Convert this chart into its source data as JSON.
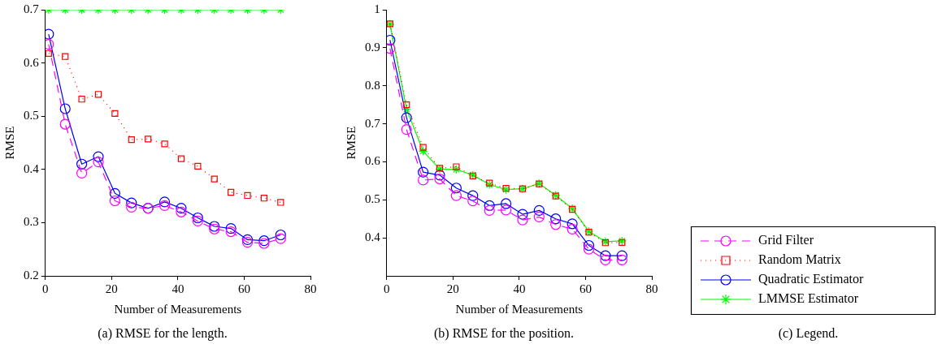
{
  "chart_data": [
    {
      "type": "line",
      "title": "(a) RMSE for the length.",
      "xlabel": "Number of Measurements",
      "ylabel": "RMSE",
      "x": [
        1,
        6,
        11,
        16,
        21,
        26,
        31,
        36,
        41,
        46,
        51,
        56,
        61,
        66,
        71
      ],
      "xlim": [
        0,
        80
      ],
      "xticks": [
        0,
        20,
        40,
        60,
        80
      ],
      "ylim": [
        0.2,
        0.7
      ],
      "yticks": [
        0.2,
        0.3,
        0.4,
        0.5,
        0.6,
        0.7
      ],
      "grid": false,
      "series": [
        {
          "color": "#ff00ff",
          "marker": "circle",
          "line_style": "dashed",
          "values": [
            0.635,
            0.485,
            0.393,
            0.414,
            0.341,
            0.329,
            0.327,
            0.332,
            0.32,
            0.303,
            0.288,
            0.283,
            0.263,
            0.261,
            0.27
          ]
        },
        {
          "color": "#ff0000",
          "marker": "square",
          "line_style": "dotted",
          "values": [
            0.618,
            0.612,
            0.532,
            0.541,
            0.505,
            0.456,
            0.457,
            0.448,
            0.42,
            0.406,
            0.382,
            0.357,
            0.351,
            0.346,
            0.338
          ]
        },
        {
          "color": "#0000ff",
          "marker": "circle",
          "line_style": "solid",
          "values": [
            0.654,
            0.514,
            0.41,
            0.424,
            0.355,
            0.337,
            0.327,
            0.339,
            0.327,
            0.309,
            0.293,
            0.289,
            0.268,
            0.266,
            0.277
          ]
        },
        {
          "color": "#00ff00",
          "marker": "cross",
          "line_style": "solid",
          "values": [
            0.7,
            0.7,
            0.7,
            0.7,
            0.7,
            0.7,
            0.7,
            0.7,
            0.7,
            0.7,
            0.7,
            0.7,
            0.7,
            0.7,
            0.7
          ]
        }
      ]
    },
    {
      "type": "line",
      "title": "(b) RMSE for the position.",
      "xlabel": "Number of Measurements",
      "ylabel": "RMSE",
      "x": [
        1,
        6,
        11,
        16,
        21,
        26,
        31,
        36,
        41,
        46,
        51,
        56,
        61,
        66,
        71
      ],
      "xlim": [
        0,
        80
      ],
      "xticks": [
        0,
        20,
        40,
        60,
        80
      ],
      "ylim": [
        0.3,
        1
      ],
      "yticks": [
        0.4,
        0.5,
        0.6,
        0.7,
        0.8,
        0.9,
        1
      ],
      "grid": false,
      "series": [
        {
          "color": "#ff00ff",
          "marker": "circle",
          "line_style": "dashed",
          "values": [
            0.898,
            0.685,
            0.552,
            0.555,
            0.511,
            0.497,
            0.472,
            0.473,
            0.447,
            0.455,
            0.435,
            0.423,
            0.37,
            0.342,
            0.342
          ]
        },
        {
          "color": "#ff0000",
          "marker": "square",
          "line_style": "dotted",
          "values": [
            0.963,
            0.75,
            0.638,
            0.583,
            0.587,
            0.563,
            0.544,
            0.53,
            0.529,
            0.542,
            0.51,
            0.475,
            0.415,
            0.387,
            0.388
          ]
        },
        {
          "color": "#0000ff",
          "marker": "circle",
          "line_style": "solid",
          "values": [
            0.92,
            0.716,
            0.573,
            0.565,
            0.531,
            0.511,
            0.485,
            0.49,
            0.462,
            0.472,
            0.45,
            0.437,
            0.38,
            0.353,
            0.353
          ]
        },
        {
          "color": "#00ff00",
          "marker": "cross",
          "line_style": "solid",
          "values": [
            0.962,
            0.738,
            0.628,
            0.581,
            0.58,
            0.565,
            0.54,
            0.527,
            0.529,
            0.543,
            0.512,
            0.477,
            0.417,
            0.39,
            0.392
          ]
        }
      ]
    },
    {
      "type": "other",
      "title": "(c) Legend.",
      "series": [
        {
          "name": "Grid Filter",
          "color": "#ff00ff",
          "marker": "circle",
          "line_style": "dashed"
        },
        {
          "name": "Random Matrix",
          "color": "#ff0000",
          "marker": "square",
          "line_style": "dotted"
        },
        {
          "name": "Quadratic Estimator",
          "color": "#0000ff",
          "marker": "circle",
          "line_style": "solid"
        },
        {
          "name": "LMMSE Estimator",
          "color": "#00ff00",
          "marker": "cross",
          "line_style": "solid"
        }
      ]
    }
  ]
}
